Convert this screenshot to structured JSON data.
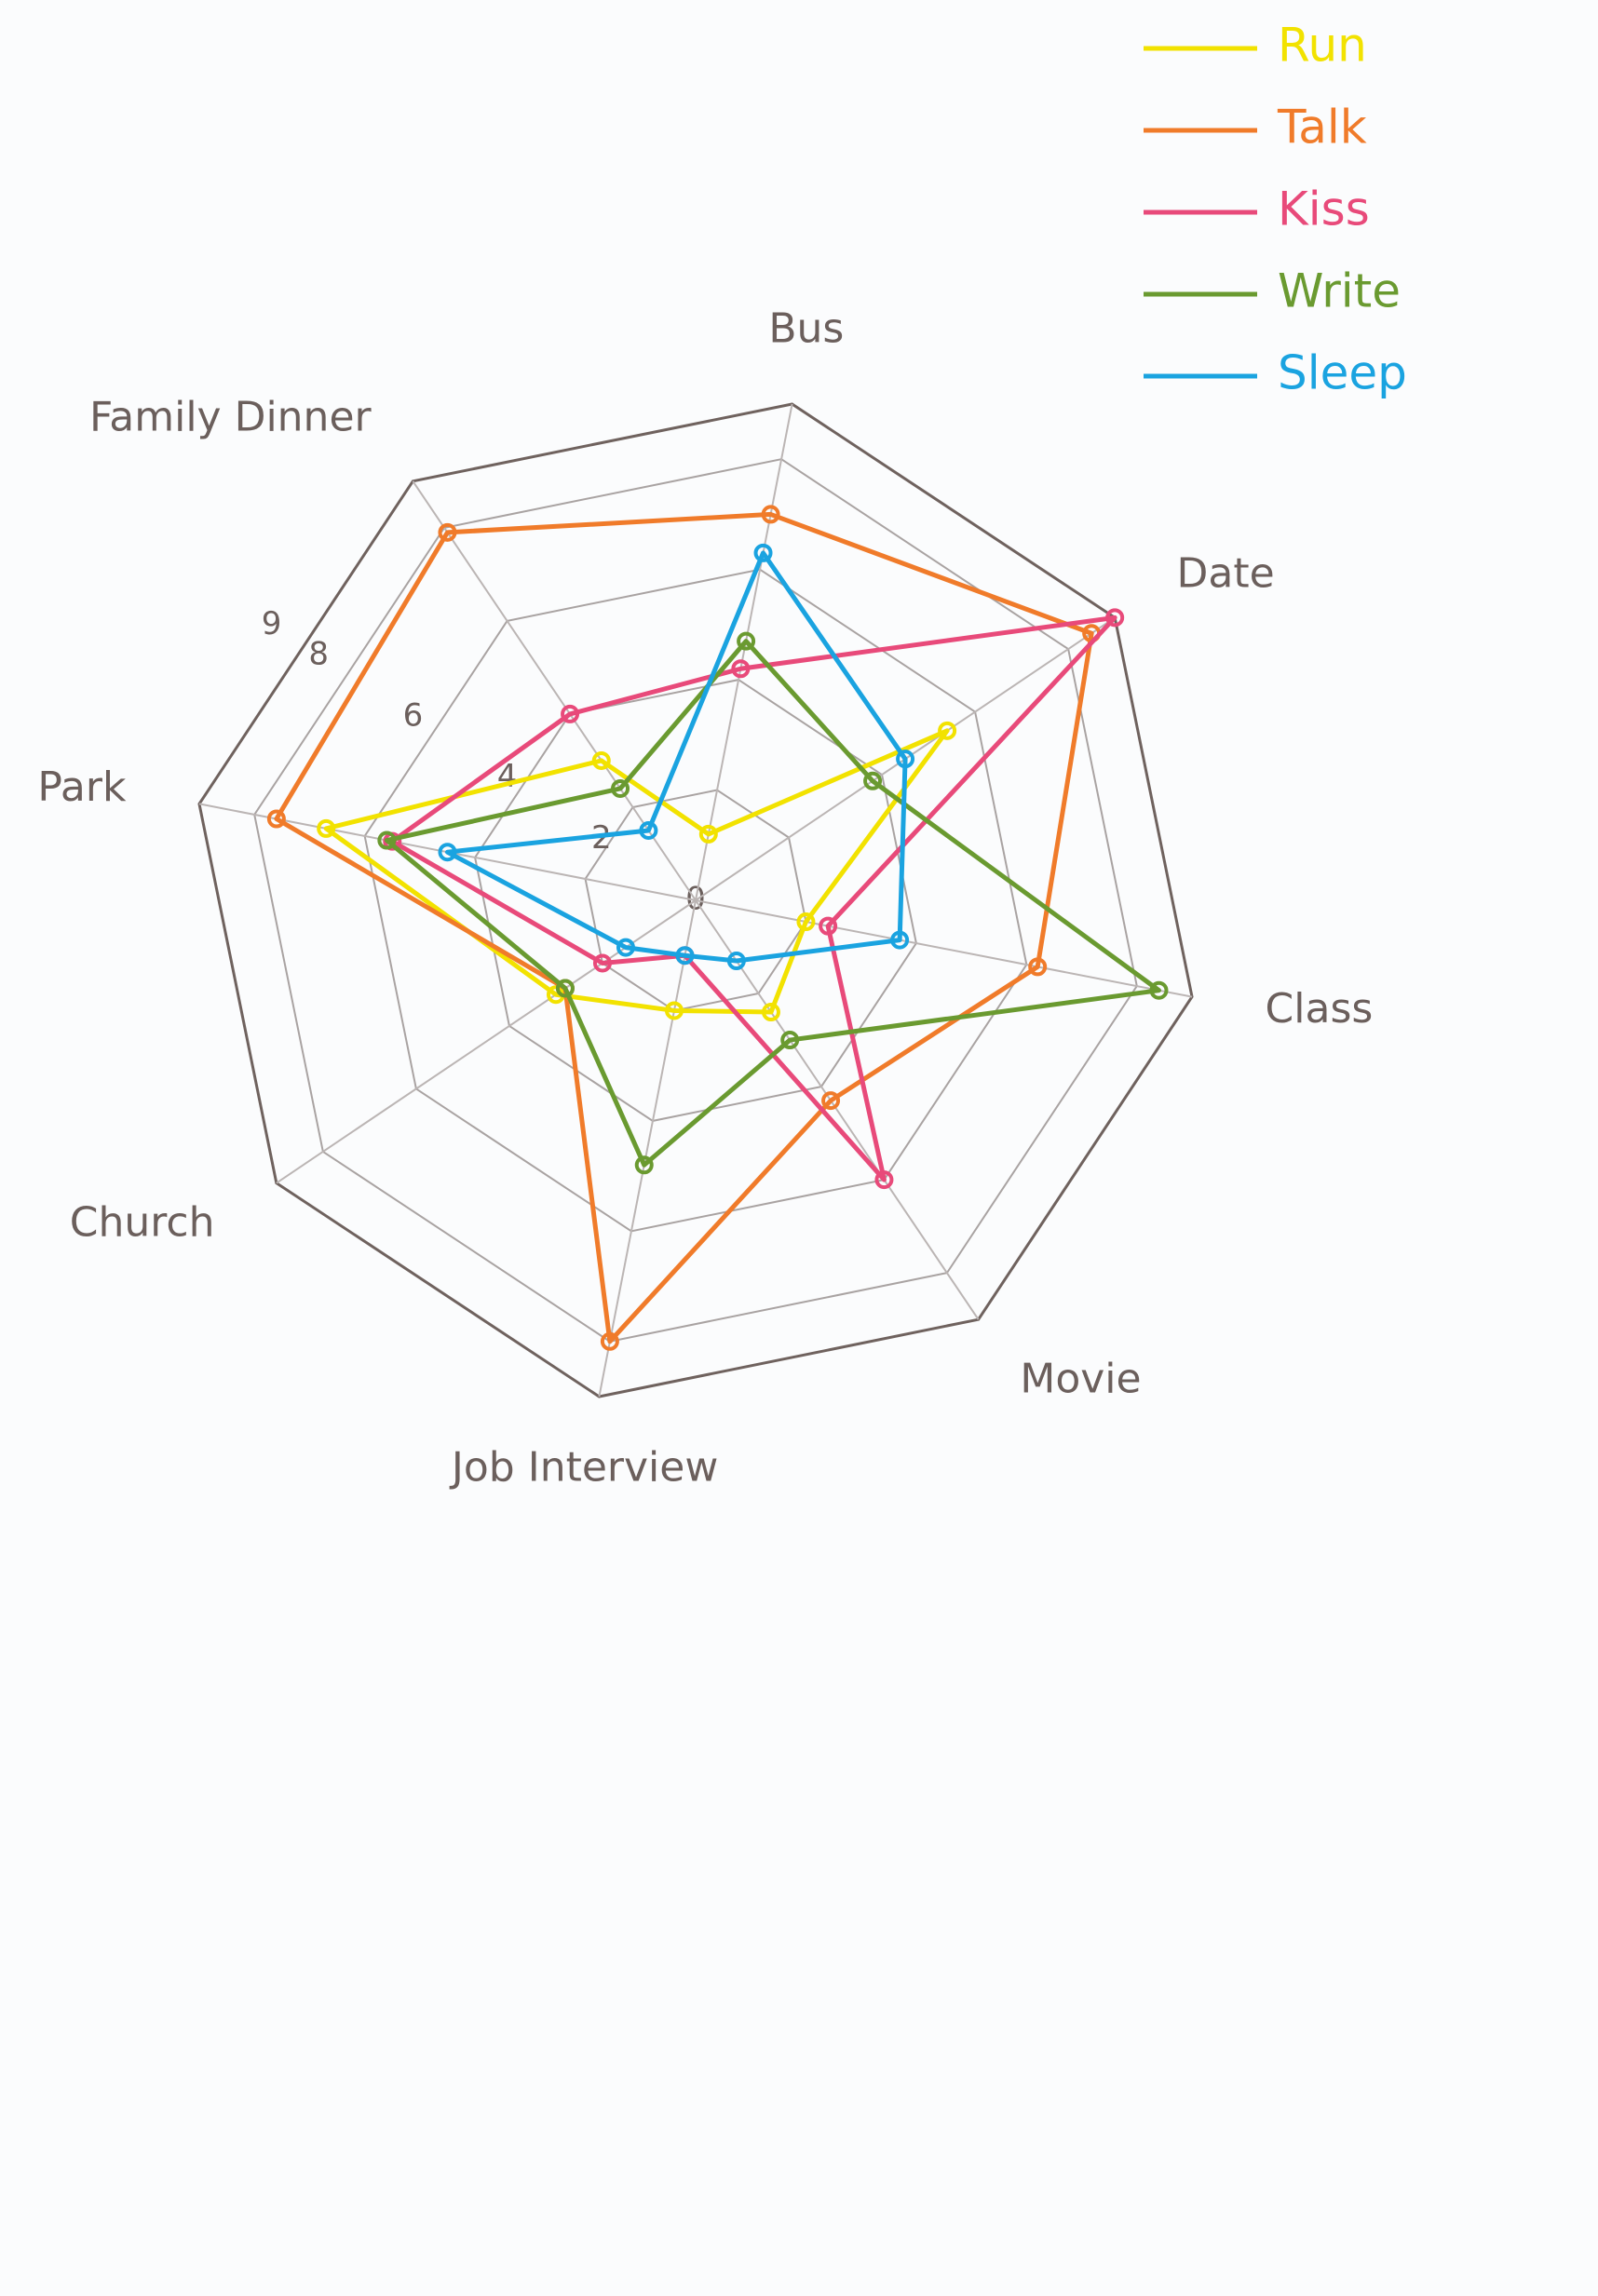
{
  "chart_data": {
    "type": "radar",
    "categories": [
      "Bus",
      "Date",
      "Class",
      "Movie",
      "Job Interview",
      "Church",
      "Park",
      "Family Dinner"
    ],
    "rlim": [
      0,
      9
    ],
    "rticks": [
      0,
      2,
      4,
      6,
      8,
      9
    ],
    "series": [
      {
        "name": "Run",
        "color": "#f2e200",
        "values": [
          1.2,
          5.4,
          2,
          2.4,
          2,
          3,
          6.7,
          3
        ]
      },
      {
        "name": "Talk",
        "color": "#f07b2a",
        "values": [
          7,
          8.5,
          6.2,
          4.3,
          8,
          2.8,
          7.6,
          7.9
        ]
      },
      {
        "name": "Kiss",
        "color": "#e84a7a",
        "values": [
          4.2,
          9,
          2.4,
          6,
          1,
          2,
          5.5,
          4
        ]
      },
      {
        "name": "Write",
        "color": "#6a9a30",
        "values": [
          4.7,
          3.8,
          8.4,
          3,
          4.8,
          2.8,
          5.6,
          2.4
        ]
      },
      {
        "name": "Sleep",
        "color": "#1aa3e0",
        "values": [
          6.3,
          4.5,
          3.7,
          1.3,
          1,
          1.5,
          4.5,
          1.5
        ]
      }
    ],
    "legend": "top-right"
  }
}
